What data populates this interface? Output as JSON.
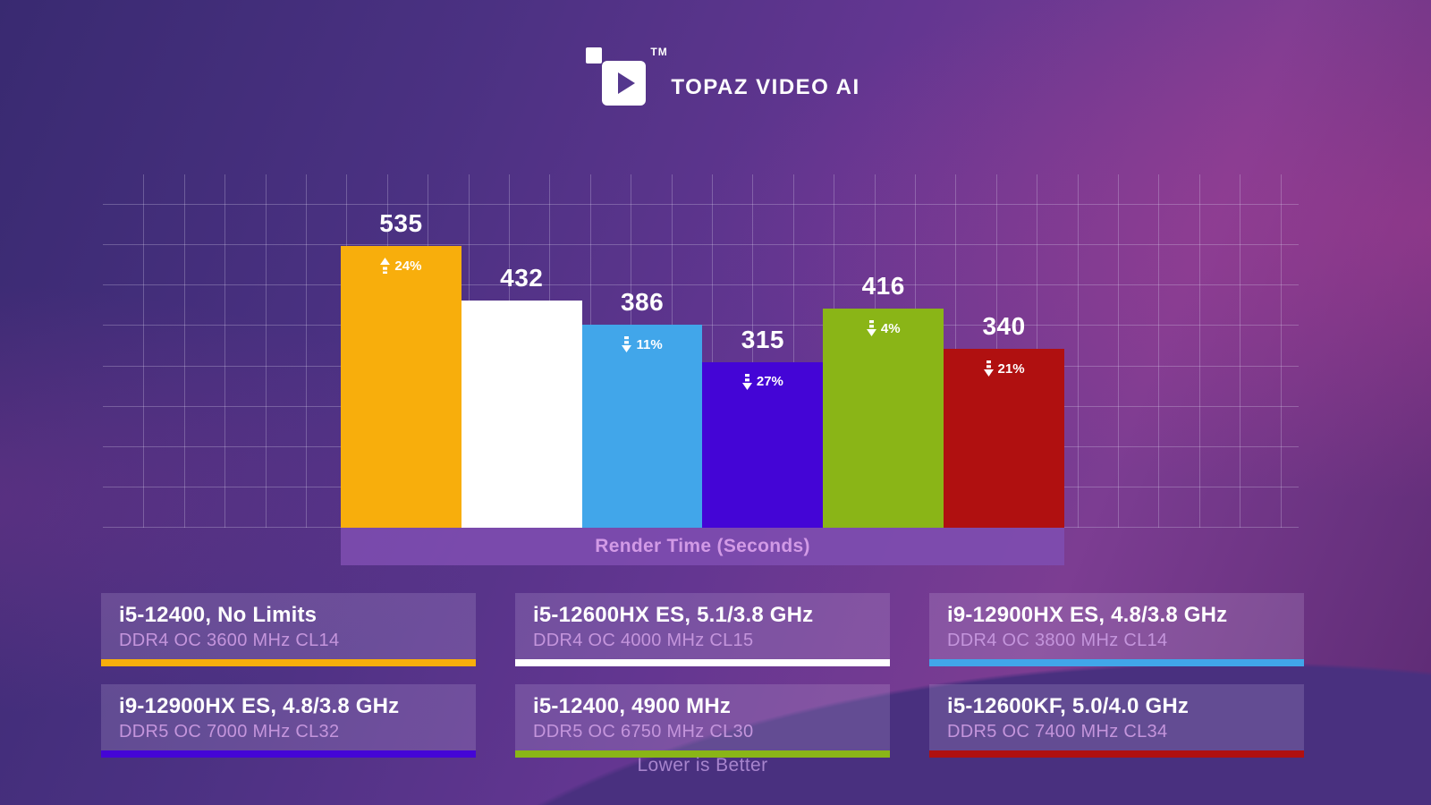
{
  "header": {
    "brand": "TOPAZ VIDEO AI",
    "trademark": "TM"
  },
  "chart_data": {
    "type": "bar",
    "title": "Render Time (Seconds)",
    "footnote": "Lower is Better",
    "unit": "seconds",
    "ylim": [
      0,
      671
    ],
    "grid": true,
    "legend_position": "bottom",
    "baseline_series": "i5-12600HX ES, 5.1/3.8 GHz",
    "series": [
      {
        "name": "i5-12400, No Limits",
        "memory": "DDR4 OC 3600 MHz CL14",
        "value": 535,
        "delta_percent": "24%",
        "delta_direction": "up",
        "color": "#F8AE0C"
      },
      {
        "name": "i5-12600HX ES, 5.1/3.8 GHz",
        "memory": "DDR4 OC 4000 MHz CL15",
        "value": 432,
        "delta_percent": null,
        "delta_direction": null,
        "color": "#FFFFFF"
      },
      {
        "name": "i9-12900HX ES, 4.8/3.8 GHz",
        "memory": "DDR4 OC 3800 MHz CL14",
        "value": 386,
        "delta_percent": "11%",
        "delta_direction": "down",
        "color": "#41A6EA"
      },
      {
        "name": "i9-12900HX ES, 4.8/3.8 GHz",
        "memory": "DDR5 OC 7000 MHz CL32",
        "value": 315,
        "delta_percent": "27%",
        "delta_direction": "down",
        "color": "#4405D6"
      },
      {
        "name": "i5-12400, 4900 MHz",
        "memory": "DDR5 OC 6750 MHz CL30",
        "value": 416,
        "delta_percent": "4%",
        "delta_direction": "down",
        "color": "#8AB517"
      },
      {
        "name": "i5-12600KF, 5.0/4.0 GHz",
        "memory": "DDR5 OC 7400 MHz CL34",
        "value": 340,
        "delta_percent": "21%",
        "delta_direction": "down",
        "color": "#B01010"
      }
    ]
  }
}
